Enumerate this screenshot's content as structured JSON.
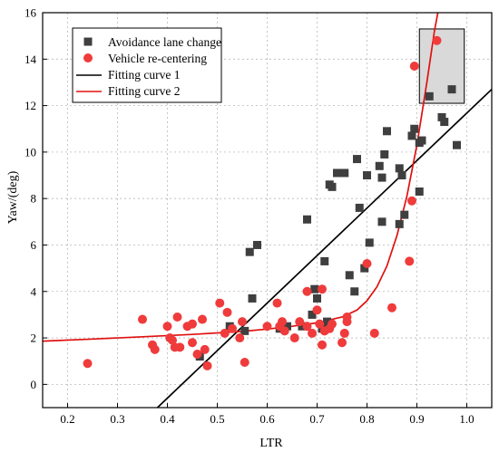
{
  "chart_data": {
    "type": "scatter",
    "xlabel": "LTR",
    "ylabel": "Yaw/(deg)",
    "xlim": [
      0.15,
      1.05
    ],
    "ylim": [
      -1,
      16
    ],
    "x_ticks": [
      0.2,
      0.3,
      0.4,
      0.5,
      0.6,
      0.7,
      0.8,
      0.9,
      1.0
    ],
    "x_tick_labels": [
      "0.2",
      "0.3",
      "0.4",
      "0.5",
      "0.6",
      "0.7",
      "0.8",
      "0.9",
      "1.0"
    ],
    "y_ticks": [
      0,
      2,
      4,
      6,
      8,
      10,
      12,
      14,
      16
    ],
    "y_tick_labels": [
      "0",
      "2",
      "4",
      "6",
      "8",
      "10",
      "12",
      "14",
      "16"
    ],
    "grid": true,
    "legend_position": "top-left",
    "series": [
      {
        "name": "Avoidance lane change",
        "marker": "square",
        "color": "#3f3f3f",
        "points": [
          [
            0.465,
            1.2
          ],
          [
            0.525,
            2.5
          ],
          [
            0.555,
            2.3
          ],
          [
            0.565,
            5.7
          ],
          [
            0.57,
            3.7
          ],
          [
            0.58,
            6.0
          ],
          [
            0.625,
            2.4
          ],
          [
            0.63,
            2.6
          ],
          [
            0.64,
            2.5
          ],
          [
            0.67,
            2.5
          ],
          [
            0.68,
            7.1
          ],
          [
            0.69,
            3.0
          ],
          [
            0.695,
            4.1
          ],
          [
            0.7,
            3.7
          ],
          [
            0.71,
            2.4
          ],
          [
            0.715,
            5.3
          ],
          [
            0.72,
            2.7
          ],
          [
            0.725,
            8.6
          ],
          [
            0.73,
            8.5
          ],
          [
            0.74,
            9.1
          ],
          [
            0.755,
            9.1
          ],
          [
            0.765,
            4.7
          ],
          [
            0.775,
            4.0
          ],
          [
            0.78,
            9.7
          ],
          [
            0.785,
            7.6
          ],
          [
            0.795,
            5.0
          ],
          [
            0.8,
            9.0
          ],
          [
            0.805,
            6.1
          ],
          [
            0.825,
            9.4
          ],
          [
            0.83,
            8.9
          ],
          [
            0.83,
            7.0
          ],
          [
            0.835,
            9.9
          ],
          [
            0.84,
            10.9
          ],
          [
            0.865,
            6.9
          ],
          [
            0.865,
            9.3
          ],
          [
            0.87,
            9.0
          ],
          [
            0.875,
            7.3
          ],
          [
            0.89,
            10.7
          ],
          [
            0.895,
            11.0
          ],
          [
            0.905,
            8.3
          ],
          [
            0.905,
            10.4
          ],
          [
            0.91,
            10.5
          ],
          [
            0.925,
            12.4
          ],
          [
            0.95,
            11.5
          ],
          [
            0.955,
            11.3
          ],
          [
            0.97,
            12.7
          ],
          [
            0.98,
            10.3
          ]
        ]
      },
      {
        "name": "Vehicle re-centering",
        "marker": "circle",
        "color": "#ef3b3b",
        "points": [
          [
            0.24,
            0.9
          ],
          [
            0.35,
            2.8
          ],
          [
            0.37,
            1.7
          ],
          [
            0.375,
            1.5
          ],
          [
            0.4,
            2.5
          ],
          [
            0.405,
            2.0
          ],
          [
            0.41,
            1.9
          ],
          [
            0.415,
            1.6
          ],
          [
            0.42,
            2.9
          ],
          [
            0.425,
            1.6
          ],
          [
            0.44,
            2.5
          ],
          [
            0.45,
            1.8
          ],
          [
            0.45,
            2.6
          ],
          [
            0.46,
            1.3
          ],
          [
            0.47,
            2.8
          ],
          [
            0.475,
            1.5
          ],
          [
            0.48,
            0.8
          ],
          [
            0.505,
            3.5
          ],
          [
            0.515,
            2.2
          ],
          [
            0.52,
            3.1
          ],
          [
            0.53,
            2.4
          ],
          [
            0.545,
            2.0
          ],
          [
            0.55,
            2.7
          ],
          [
            0.555,
            0.95
          ],
          [
            0.6,
            2.5
          ],
          [
            0.62,
            3.5
          ],
          [
            0.625,
            2.5
          ],
          [
            0.63,
            2.7
          ],
          [
            0.635,
            2.3
          ],
          [
            0.655,
            2.0
          ],
          [
            0.665,
            2.7
          ],
          [
            0.68,
            2.5
          ],
          [
            0.68,
            4.0
          ],
          [
            0.69,
            2.2
          ],
          [
            0.7,
            3.2
          ],
          [
            0.705,
            2.6
          ],
          [
            0.71,
            4.1
          ],
          [
            0.71,
            1.7
          ],
          [
            0.715,
            2.3
          ],
          [
            0.725,
            2.4
          ],
          [
            0.73,
            2.6
          ],
          [
            0.75,
            1.8
          ],
          [
            0.755,
            2.2
          ],
          [
            0.76,
            2.7
          ],
          [
            0.76,
            2.9
          ],
          [
            0.8,
            5.2
          ],
          [
            0.815,
            2.2
          ],
          [
            0.85,
            3.3
          ],
          [
            0.885,
            5.3
          ],
          [
            0.89,
            7.9
          ],
          [
            0.895,
            13.7
          ],
          [
            0.94,
            14.8
          ]
        ]
      },
      {
        "name": "Fitting curve 1",
        "type": "line",
        "color": "#000000",
        "points": [
          [
            0.38,
            -1.0
          ],
          [
            1.05,
            12.7
          ]
        ]
      },
      {
        "name": "Fitting curve 2",
        "type": "line",
        "color": "#e01010",
        "points": [
          [
            0.15,
            1.86
          ],
          [
            0.25,
            1.95
          ],
          [
            0.35,
            2.05
          ],
          [
            0.45,
            2.15
          ],
          [
            0.55,
            2.28
          ],
          [
            0.6,
            2.38
          ],
          [
            0.65,
            2.5
          ],
          [
            0.7,
            2.65
          ],
          [
            0.75,
            2.9
          ],
          [
            0.78,
            3.2
          ],
          [
            0.8,
            3.6
          ],
          [
            0.82,
            4.2
          ],
          [
            0.84,
            5.1
          ],
          [
            0.86,
            6.4
          ],
          [
            0.88,
            8.1
          ],
          [
            0.9,
            10.3
          ],
          [
            0.92,
            13.0
          ],
          [
            0.935,
            15.2
          ],
          [
            0.942,
            16.0
          ]
        ]
      }
    ],
    "annotation_box": {
      "x": [
        0.905,
        0.995
      ],
      "y": [
        12.1,
        15.3
      ],
      "fill": "#d9d9d9"
    }
  }
}
